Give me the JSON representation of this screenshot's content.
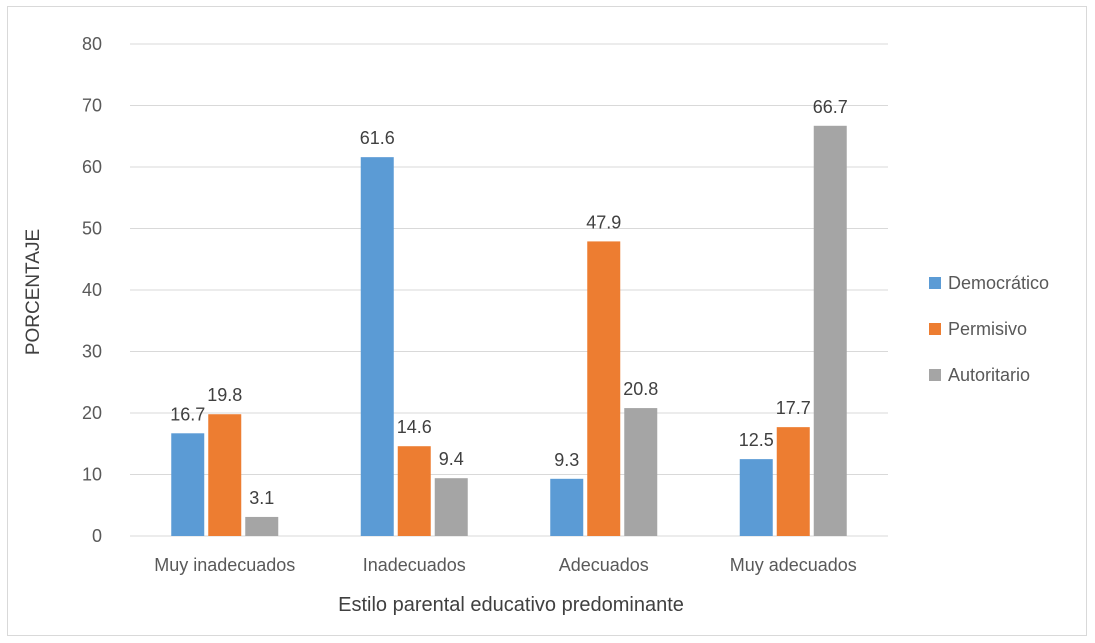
{
  "chart_data": {
    "type": "bar",
    "title": "",
    "xlabel": "Estilo parental educativo predominante",
    "ylabel": "PORCENTAJE",
    "ylim": [
      0,
      80
    ],
    "yticks": [
      "0",
      "10",
      "20",
      "30",
      "40",
      "50",
      "60",
      "70",
      "80"
    ],
    "categories": [
      "Muy inadecuados",
      "Inadecuados",
      "Adecuados",
      "Muy adecuados"
    ],
    "series": [
      {
        "name": "Democrático",
        "color": "#5b9bd5",
        "values": [
          16.7,
          61.6,
          9.3,
          12.5
        ]
      },
      {
        "name": "Permisivo",
        "color": "#ed7d31",
        "values": [
          19.8,
          14.6,
          47.9,
          17.7
        ]
      },
      {
        "name": "Autoritario",
        "color": "#a5a5a5",
        "values": [
          3.1,
          9.4,
          20.8,
          66.7
        ]
      }
    ],
    "data_labels": [
      [
        "16.7",
        "61.6",
        "9.3",
        "12.5"
      ],
      [
        "19.8",
        "14.6",
        "47.9",
        "17.7"
      ],
      [
        "3.1",
        "9.4",
        "20.8",
        "66.7"
      ]
    ],
    "grid": true,
    "legend_position": "right"
  }
}
